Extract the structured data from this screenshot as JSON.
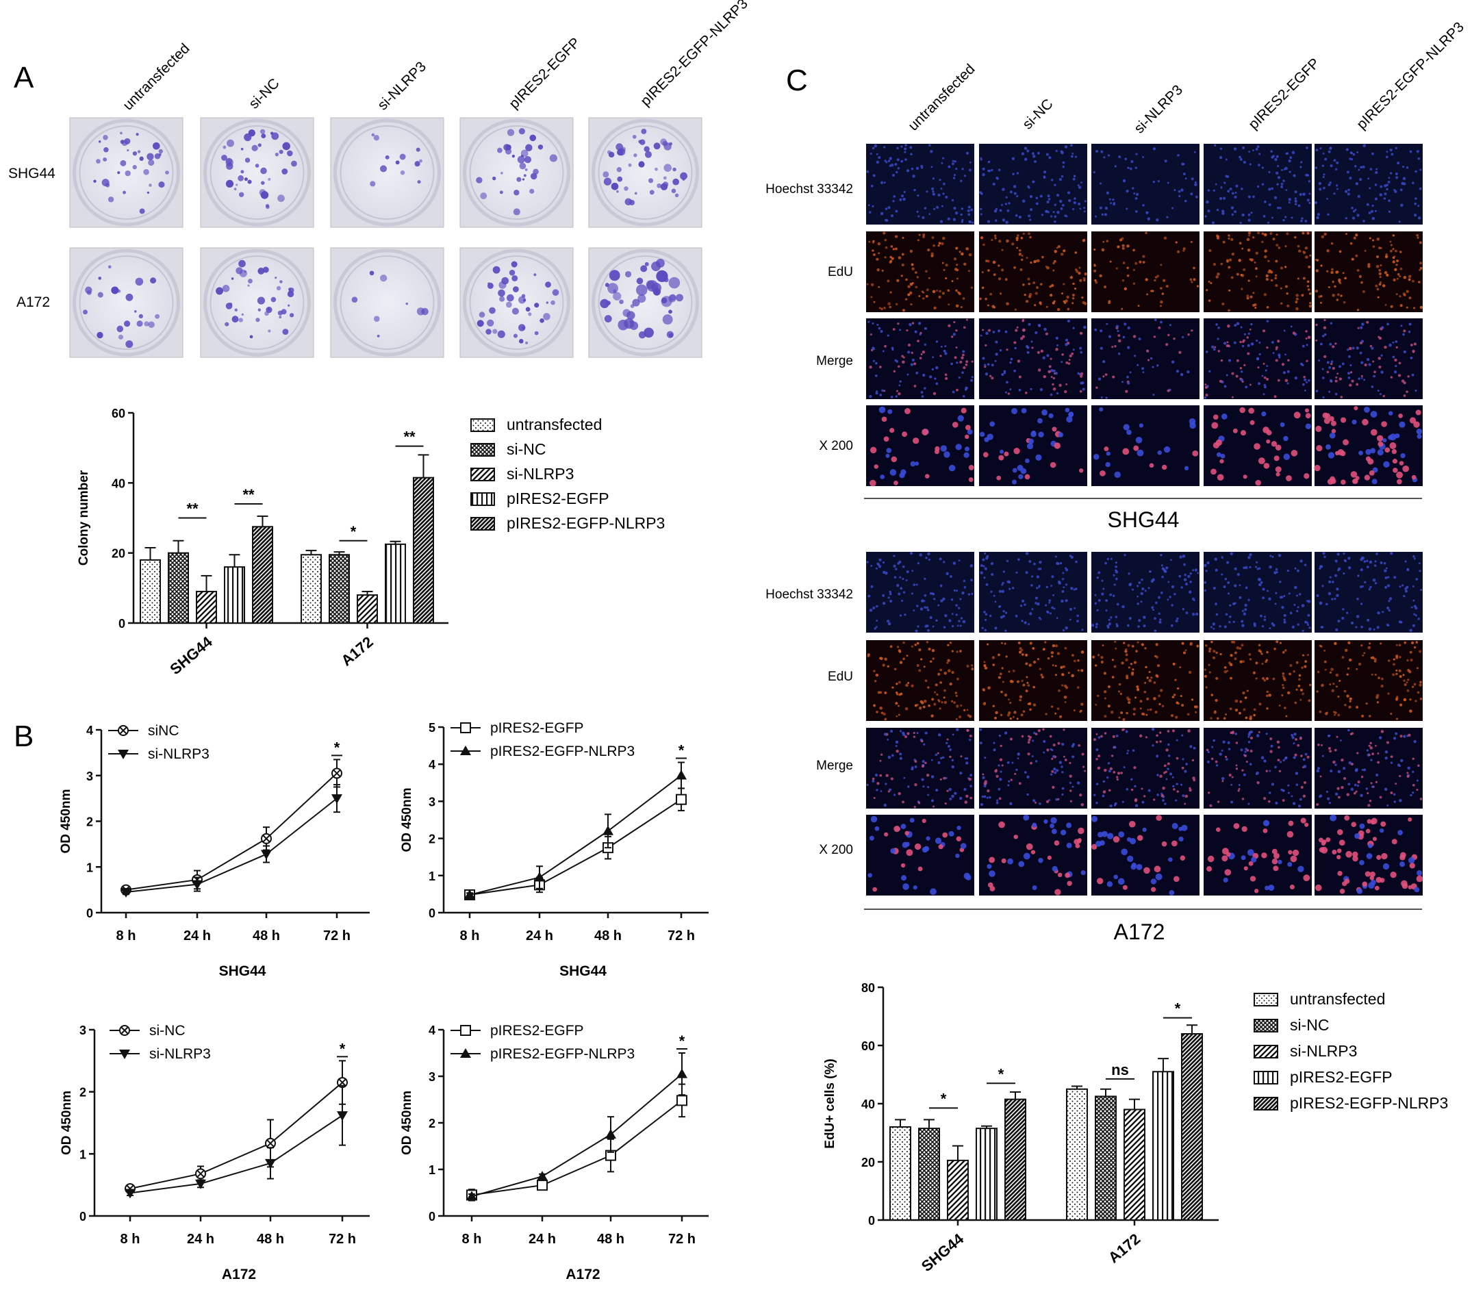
{
  "figure": {
    "panel_letters": [
      "A",
      "B",
      "C"
    ],
    "colors": {
      "plate_bg": "#e9e9f1",
      "plate_rim": "#c9c9d6",
      "colony": "#5a4bbf",
      "hoechst": "#1b2370",
      "edu": "#c24a1a",
      "dark_field": "#050512"
    }
  },
  "panel_a": {
    "column_headers": [
      "untransfected",
      "si-NC",
      "si-NLRP3",
      "pIRES2-EGFP",
      "pIRES2-EGFP-NLRP3"
    ],
    "row_labels": [
      "SHG44",
      "A172"
    ]
  },
  "panel_c": {
    "column_headers": [
      "untransfected",
      "si-NC",
      "si-NLRP3",
      "pIRES2-EGFP",
      "pIRES2-EGFP-NLRP3"
    ],
    "row_labels": [
      "Hoechst 33342",
      "EdU",
      "Merge",
      "X 200"
    ],
    "group_captions": [
      "SHG44",
      "A172"
    ]
  },
  "chart_data": [
    {
      "id": "colony",
      "type": "bar",
      "ylabel": "Colony number",
      "ylim": [
        0,
        60
      ],
      "yticks": [
        0,
        20,
        40,
        60
      ],
      "groups": [
        "SHG44",
        "A172"
      ],
      "series": [
        {
          "name": "untransfected",
          "values": [
            18,
            19.5
          ],
          "errors": [
            3.5,
            1.2
          ]
        },
        {
          "name": "si-NC",
          "values": [
            20,
            19.5
          ],
          "errors": [
            3.5,
            0.8
          ]
        },
        {
          "name": "si-NLRP3",
          "values": [
            9,
            8
          ],
          "errors": [
            4.5,
            1.0
          ]
        },
        {
          "name": "pIRES2-EGFP",
          "values": [
            16,
            22.5
          ],
          "errors": [
            3.5,
            0.8
          ]
        },
        {
          "name": "pIRES2-EGFP-NLRP3",
          "values": [
            27.5,
            41.5
          ],
          "errors": [
            3,
            6.5
          ]
        }
      ],
      "significance": [
        {
          "label": "**",
          "group": 0,
          "between": [
            1,
            2
          ],
          "y": 30
        },
        {
          "label": "**",
          "group": 0,
          "between": [
            3,
            4
          ],
          "y": 34
        },
        {
          "label": "*",
          "group": 1,
          "between": [
            1,
            2
          ],
          "y": 23.5
        },
        {
          "label": "**",
          "group": 1,
          "between": [
            3,
            4
          ],
          "y": 50.5
        }
      ],
      "legend_position": "right"
    },
    {
      "id": "cck8_shg44_si",
      "type": "line",
      "title": "SHG44",
      "ylabel": "OD 450nm",
      "ylim": [
        0,
        4
      ],
      "yticks": [
        0,
        1,
        2,
        3,
        4
      ],
      "categories": [
        "8 h",
        "24 h",
        "48 h",
        "72 h"
      ],
      "series": [
        {
          "name": "siNC",
          "marker": "circle-x",
          "values": [
            0.5,
            0.72,
            1.62,
            3.05
          ],
          "errors": [
            0.05,
            0.2,
            0.25,
            0.3
          ]
        },
        {
          "name": "si-NLRP3",
          "marker": "triangle-down",
          "values": [
            0.45,
            0.62,
            1.28,
            2.5
          ],
          "errors": [
            0.05,
            0.15,
            0.18,
            0.3
          ]
        }
      ],
      "significance": [
        {
          "label": "*",
          "category": 3
        }
      ],
      "legend_position": "top-left"
    },
    {
      "id": "cck8_shg44_oe",
      "type": "line",
      "title": "SHG44",
      "ylabel": "OD 450nm",
      "ylim": [
        0,
        5
      ],
      "yticks": [
        0,
        1,
        2,
        3,
        4,
        5
      ],
      "categories": [
        "8 h",
        "24 h",
        "48 h",
        "72 h"
      ],
      "series": [
        {
          "name": "pIRES2-EGFP",
          "marker": "square-open",
          "values": [
            0.48,
            0.75,
            1.75,
            3.05
          ],
          "errors": [
            0.05,
            0.2,
            0.3,
            0.3
          ]
        },
        {
          "name": "pIRES2-EGFP-NLRP3",
          "marker": "triangle-up",
          "values": [
            0.48,
            0.95,
            2.2,
            3.7
          ],
          "errors": [
            0.05,
            0.3,
            0.45,
            0.35
          ]
        }
      ],
      "significance": [
        {
          "label": "*",
          "category": 3
        }
      ],
      "legend_position": "top-left"
    },
    {
      "id": "cck8_a172_si",
      "type": "line",
      "title": "A172",
      "ylabel": "OD 450nm",
      "ylim": [
        0,
        3
      ],
      "yticks": [
        0,
        1,
        2,
        3
      ],
      "categories": [
        "8 h",
        "24 h",
        "48 h",
        "72 h"
      ],
      "series": [
        {
          "name": "si-NC",
          "marker": "circle-x",
          "values": [
            0.44,
            0.68,
            1.17,
            2.15
          ],
          "errors": [
            0.05,
            0.12,
            0.38,
            0.35
          ]
        },
        {
          "name": "si-NLRP3",
          "marker": "triangle-down",
          "values": [
            0.37,
            0.52,
            0.85,
            1.62
          ],
          "errors": [
            0.04,
            0.06,
            0.25,
            0.48
          ]
        }
      ],
      "significance": [
        {
          "label": "*",
          "category": 3
        }
      ],
      "legend_position": "top-left"
    },
    {
      "id": "cck8_a172_oe",
      "type": "line",
      "title": "A172",
      "ylabel": "OD 450nm",
      "ylim": [
        0,
        4
      ],
      "yticks": [
        0,
        1,
        2,
        3,
        4
      ],
      "categories": [
        "8 h",
        "24 h",
        "48 h",
        "72 h"
      ],
      "series": [
        {
          "name": "pIRES2-EGFP",
          "marker": "square-open",
          "values": [
            0.45,
            0.66,
            1.3,
            2.48
          ],
          "errors": [
            0.12,
            0.06,
            0.35,
            0.35
          ]
        },
        {
          "name": "pIRES2-EGFP-NLRP3",
          "marker": "triangle-up",
          "values": [
            0.42,
            0.85,
            1.75,
            3.05
          ],
          "errors": [
            0.05,
            0.05,
            0.38,
            0.45
          ]
        }
      ],
      "significance": [
        {
          "label": "*",
          "category": 3
        }
      ],
      "legend_position": "top-left"
    },
    {
      "id": "edu",
      "type": "bar",
      "ylabel": "EdU+ cells (%)",
      "ylim": [
        0,
        80
      ],
      "yticks": [
        0,
        20,
        40,
        60,
        80
      ],
      "groups": [
        "SHG44",
        "A172"
      ],
      "series": [
        {
          "name": "untransfected",
          "values": [
            32,
            45
          ],
          "errors": [
            2.5,
            1
          ]
        },
        {
          "name": "si-NC",
          "values": [
            31.5,
            42.5
          ],
          "errors": [
            3,
            2.5
          ]
        },
        {
          "name": "si-NLRP3",
          "values": [
            20.5,
            38
          ],
          "errors": [
            5,
            3.5
          ]
        },
        {
          "name": "pIRES2-EGFP",
          "values": [
            31.5,
            51
          ],
          "errors": [
            0.8,
            4.5
          ]
        },
        {
          "name": "pIRES2-EGFP-NLRP3",
          "values": [
            41.5,
            64
          ],
          "errors": [
            2.5,
            3
          ]
        }
      ],
      "significance": [
        {
          "label": "*",
          "group": 0,
          "between": [
            1,
            2
          ],
          "y": 38.5
        },
        {
          "label": "*",
          "group": 0,
          "between": [
            3,
            4
          ],
          "y": 47
        },
        {
          "label": "ns",
          "group": 1,
          "between": [
            1,
            2
          ],
          "y": 48.5
        },
        {
          "label": "*",
          "group": 1,
          "between": [
            3,
            4
          ],
          "y": 69.5
        }
      ],
      "legend_position": "right"
    }
  ]
}
